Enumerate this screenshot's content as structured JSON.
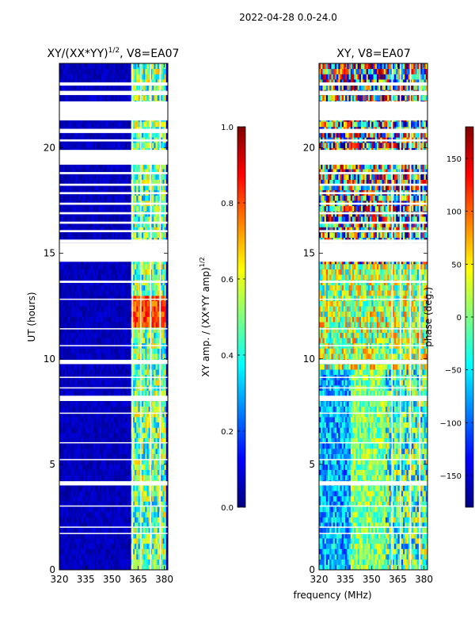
{
  "figure_title": "2022-04-28 0.0-24.0",
  "chart_data": [
    {
      "type": "heatmap",
      "title": "XY/(XX*YY)",
      "title_superscript": "1/2",
      "title_suffix": ", V8=EA07",
      "xlabel": "",
      "ylabel": "UT (hours)",
      "xlim": [
        320,
        382
      ],
      "ylim": [
        0,
        24
      ],
      "xticks": [
        320,
        335,
        350,
        365,
        380
      ],
      "yticks": [
        0,
        5,
        10,
        15,
        20
      ],
      "colorbar": {
        "label": "XY amp. / (XX*YY amp)",
        "label_superscript": "1/2",
        "range": [
          0.0,
          1.0
        ],
        "ticks": [
          "0.0",
          "0.2",
          "0.4",
          "0.6",
          "0.8",
          "1.0"
        ],
        "colormap": "jet"
      },
      "description_values": "mostly ~0 (dark blue); bright channels near 362-380 MHz with values 0.4-0.9"
    },
    {
      "type": "heatmap",
      "title": "XY, V8=EA07",
      "xlabel": "frequency (MHz)",
      "ylabel": "",
      "xlim": [
        320,
        382
      ],
      "ylim": [
        0,
        24
      ],
      "xticks": [
        320,
        335,
        350,
        365,
        380
      ],
      "yticks": [
        0,
        5,
        10,
        15,
        20
      ],
      "colorbar": {
        "label": "phase (deg.)",
        "range": [
          -180,
          180
        ],
        "ticks": [
          "−150",
          "−100",
          "−50",
          "0",
          "50",
          "100",
          "150"
        ],
        "colormap": "jet"
      },
      "description_values": "phase varies from -180 to 180 deg; low-UT region mostly -90..0, high-UT region mixed"
    }
  ],
  "flagged_time_bands_hours": [
    [
      22.5,
      22.7
    ],
    [
      22.95,
      23.1
    ],
    [
      21.3,
      22.2
    ],
    [
      20.7,
      20.9
    ],
    [
      20.3,
      20.4
    ],
    [
      19.2,
      19.9
    ],
    [
      18.75,
      18.85
    ],
    [
      18.2,
      18.3
    ],
    [
      17.8,
      17.9
    ],
    [
      17.3,
      17.4
    ],
    [
      16.85,
      16.95
    ],
    [
      16.4,
      16.5
    ],
    [
      16.0,
      16.1
    ],
    [
      15.5,
      15.65
    ],
    [
      14.6,
      15.5
    ],
    [
      13.6,
      13.7
    ],
    [
      12.8,
      12.85
    ],
    [
      11.4,
      11.45
    ],
    [
      10.6,
      10.65
    ],
    [
      9.75,
      9.95
    ],
    [
      9.1,
      9.15
    ],
    [
      8.6,
      8.65
    ],
    [
      8.0,
      8.25
    ],
    [
      7.4,
      7.45
    ],
    [
      6.0,
      6.05
    ],
    [
      5.2,
      5.25
    ],
    [
      4.0,
      4.2
    ],
    [
      3.0,
      3.05
    ],
    [
      2.0,
      2.05
    ],
    [
      1.7,
      1.75
    ]
  ],
  "flagged_channels_mhz": [
    361.8,
    366.5,
    372.2,
    377.6
  ]
}
